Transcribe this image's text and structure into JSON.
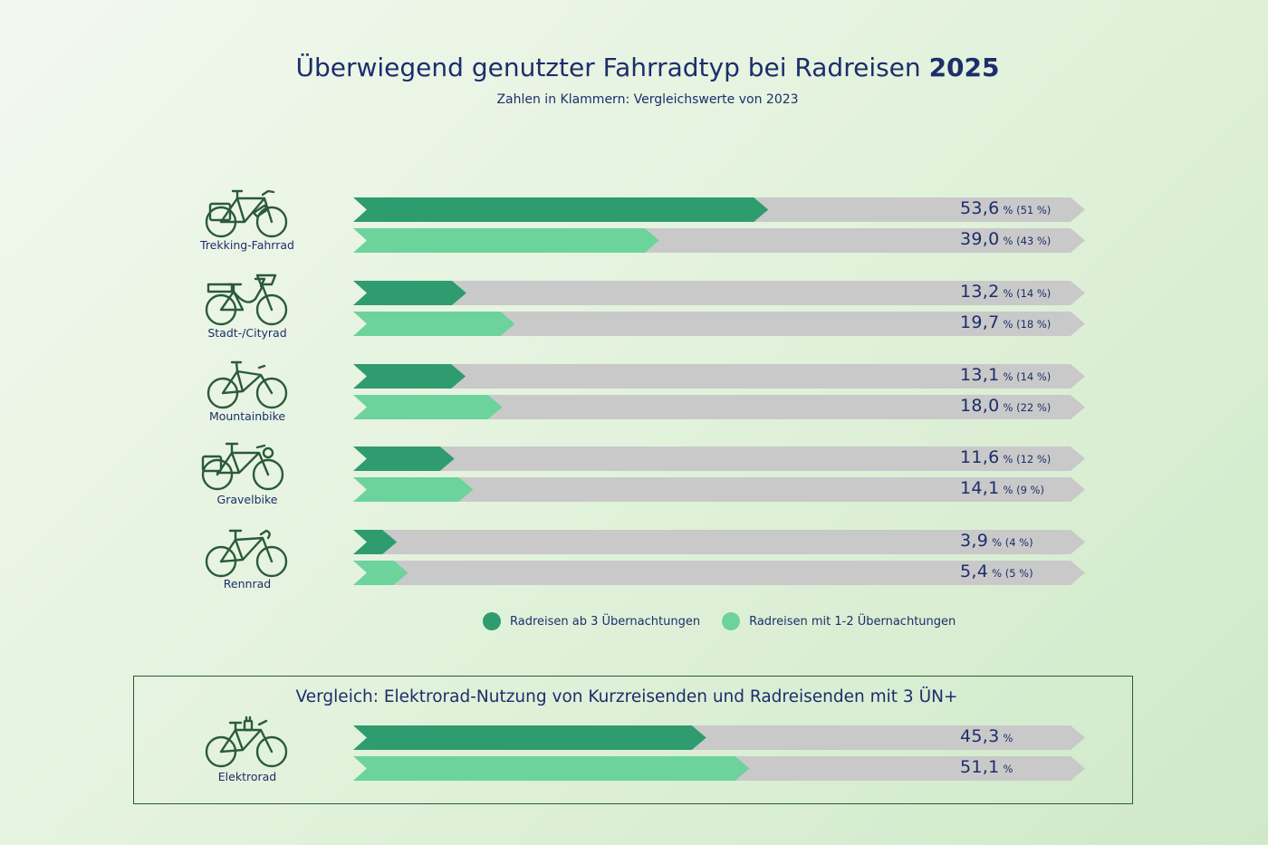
{
  "title_main": "Überwiegend genutzter Fahrradtyp bei Radreisen",
  "title_year": "2025",
  "subtitle": "Zahlen in Klammern: Vergleichswerte von 2023",
  "colors": {
    "dark_green": "#2e9c6e",
    "light_green": "#6dd39c",
    "grey": "#c9c9c9",
    "text": "#1c2e6b",
    "icon": "#2b5a3a"
  },
  "legend": [
    {
      "label": "Radreisen ab 3 Übernachtungen",
      "color": "#2e9c6e"
    },
    {
      "label": "Radreisen mit 1-2 Übernachtungen",
      "color": "#6dd39c"
    }
  ],
  "chart_data": [
    {
      "type": "bar",
      "orientation": "horizontal",
      "title": "Überwiegend genutzter Fahrradtyp bei Radreisen 2025",
      "subtitle": "Zahlen in Klammern: Vergleichswerte von 2023",
      "categories": [
        "Trekking-Fahrrad",
        "Stadt-/Cityrad",
        "Mountainbike",
        "Gravelbike",
        "Rennrad"
      ],
      "xlim": [
        0,
        100
      ],
      "unit": "%",
      "legend_position": "bottom",
      "series": [
        {
          "name": "Radreisen ab 3 Übernachtungen",
          "values": [
            53.6,
            13.2,
            13.1,
            11.6,
            3.9
          ],
          "labels": [
            "53,6",
            "13,2",
            "13,1",
            "11,6",
            "3,9"
          ],
          "compare_2023": [
            "(51 %)",
            "(14 %)",
            "(14 %)",
            "(12 %)",
            "(4 %)"
          ]
        },
        {
          "name": "Radreisen mit 1-2 Übernachtungen",
          "values": [
            39.0,
            19.7,
            18.0,
            14.1,
            5.4
          ],
          "labels": [
            "39,0",
            "19,7",
            "18,0",
            "14,1",
            "5,4"
          ],
          "compare_2023": [
            "(43 %)",
            "(18 %)",
            "(22 %)",
            "(9 %)",
            "(5 %)"
          ]
        }
      ]
    },
    {
      "type": "bar",
      "orientation": "horizontal",
      "title": "Vergleich: Elektrorad-Nutzung von Kurzreisenden und Radreisenden mit 3 ÜN+",
      "categories": [
        "Elektrorad"
      ],
      "xlim": [
        0,
        100
      ],
      "unit": "%",
      "series": [
        {
          "name": "Radreisen ab 3 Übernachtungen",
          "values": [
            45.3
          ],
          "labels": [
            "45,3"
          ]
        },
        {
          "name": "Radreisen mit 1-2 Übernachtungen",
          "values": [
            51.1
          ],
          "labels": [
            "51,1"
          ]
        }
      ]
    }
  ]
}
